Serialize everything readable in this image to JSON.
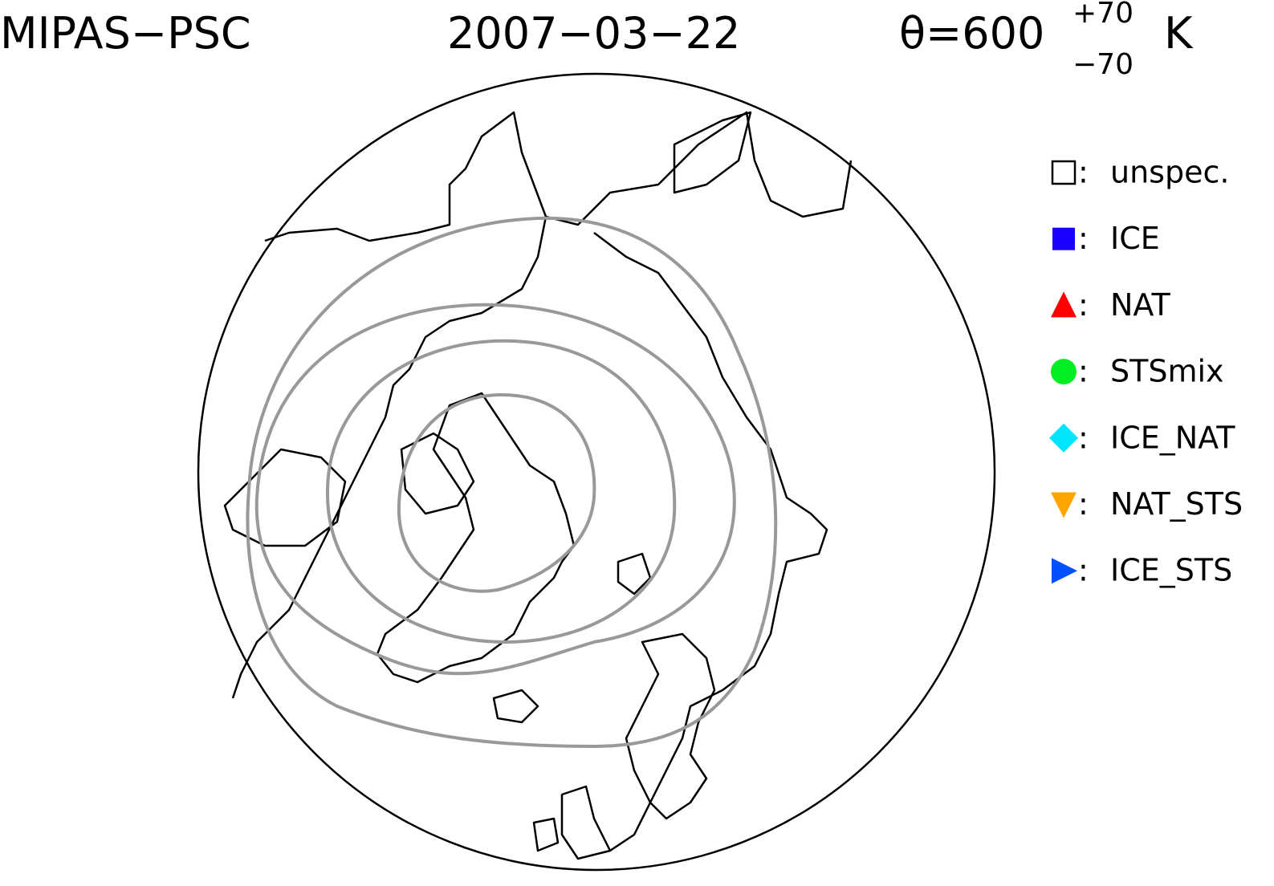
{
  "header": {
    "instrument": "MIPAS−PSC",
    "date": "2007−03−22",
    "level": "θ=600",
    "level_upper": "+70",
    "level_lower": "−70",
    "unit": "K"
  },
  "legend": {
    "separator": ":",
    "entries": [
      {
        "label": "unspec.",
        "marker": "square-open",
        "color": "#000000"
      },
      {
        "label": "ICE",
        "marker": "square",
        "color": "#1a00ff"
      },
      {
        "label": "NAT",
        "marker": "triangle-up",
        "color": "#ff0000"
      },
      {
        "label": "STSmix",
        "marker": "circle",
        "color": "#00ee22"
      },
      {
        "label": "ICE_NAT",
        "marker": "diamond",
        "color": "#00e5ff"
      },
      {
        "label": "NAT_STS",
        "marker": "triangle-down",
        "color": "#ffa500"
      },
      {
        "label": "ICE_STS",
        "marker": "triangle-right",
        "color": "#0050ff"
      }
    ]
  }
}
